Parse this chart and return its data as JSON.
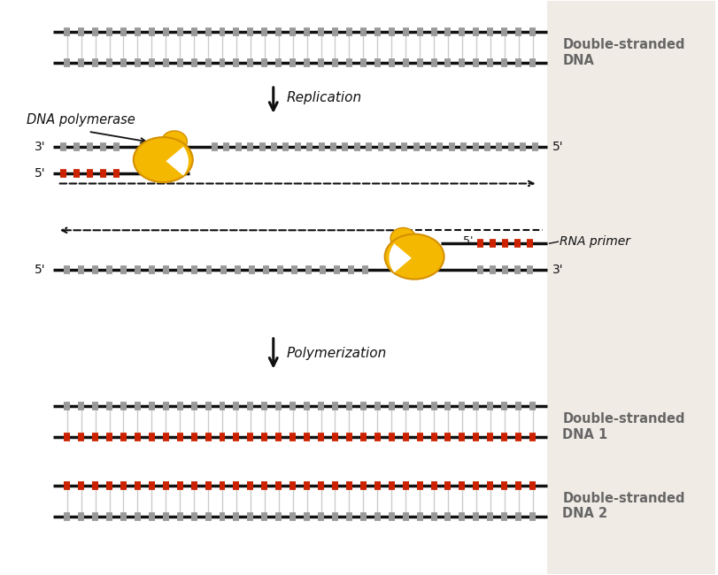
{
  "bg_color": "#ffffff",
  "bg_right_color": "#f0ebe5",
  "gray_color": "#999999",
  "red_color": "#cc2200",
  "black_color": "#111111",
  "gold_color": "#f5b800",
  "gold_edge": "#d49000",
  "text_color": "#666666",
  "ds_dna_text": "Double-stranded\nDNA",
  "ds_dna1_text": "Double-stranded\nDNA 1",
  "ds_dna2_text": "Double-stranded\nDNA 2",
  "replication_text": "Replication",
  "polymerization_text": "Polymerization",
  "dna_poly_text": "DNA polymerase",
  "rna_primer_text": "RNA primer",
  "label_3prime": "3'",
  "label_5prime": "5'"
}
